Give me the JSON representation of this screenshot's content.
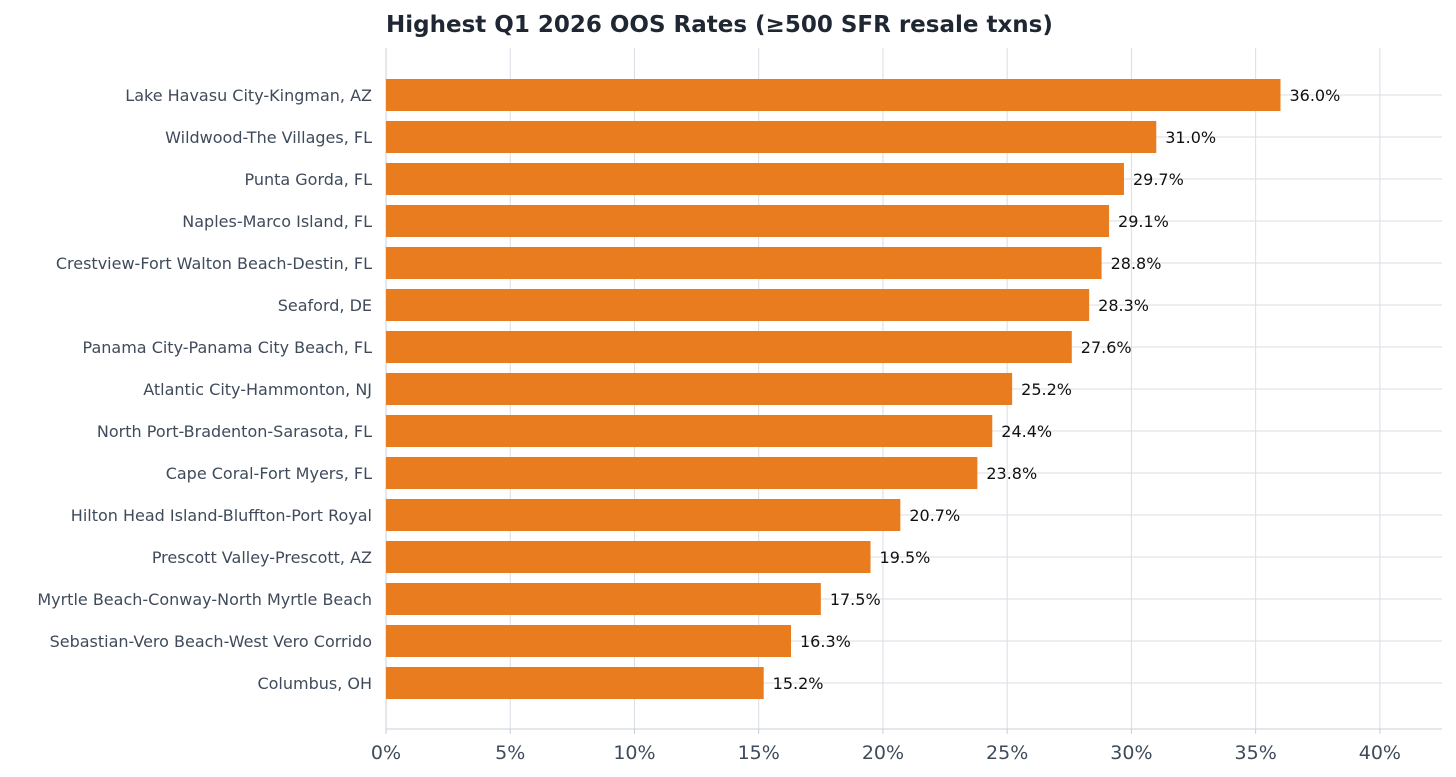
{
  "chart_data": {
    "type": "bar",
    "orientation": "horizontal",
    "title": "Highest Q1 2026 OOS Rates (≥500 SFR resale txns)",
    "xlabel": "",
    "ylabel": "",
    "categories": [
      "Lake Havasu City-Kingman, AZ",
      "Wildwood-The Villages, FL",
      "Punta Gorda, FL",
      "Naples-Marco Island, FL",
      "Crestview-Fort Walton Beach-Destin, FL",
      "Seaford, DE",
      "Panama City-Panama City Beach, FL",
      "Atlantic City-Hammonton, NJ",
      "North Port-Bradenton-Sarasota, FL",
      "Cape Coral-Fort Myers, FL",
      "Hilton Head Island-Bluffton-Port Royal",
      "Prescott Valley-Prescott, AZ",
      "Myrtle Beach-Conway-North Myrtle Beach",
      "Sebastian-Vero Beach-West Vero Corrido",
      "Columbus, OH"
    ],
    "values": [
      36.0,
      31.0,
      29.7,
      29.1,
      28.8,
      28.3,
      27.6,
      25.2,
      24.4,
      23.8,
      20.7,
      19.5,
      17.5,
      16.3,
      15.2
    ],
    "data_labels": [
      "36.0%",
      "31.0%",
      "29.7%",
      "29.1%",
      "28.8%",
      "28.3%",
      "27.6%",
      "25.2%",
      "24.4%",
      "23.8%",
      "20.7%",
      "19.5%",
      "17.5%",
      "16.3%",
      "15.2%"
    ],
    "xlim": [
      0,
      42.5
    ],
    "xticks": [
      0,
      5,
      10,
      15,
      20,
      25,
      30,
      35,
      40
    ],
    "xtick_labels": [
      "0%",
      "5%",
      "10%",
      "15%",
      "20%",
      "25%",
      "30%",
      "35%",
      "40%"
    ],
    "grid": true,
    "bar_color": "#e87c1e",
    "grid_color": "#d9dee6",
    "legend": "none"
  }
}
